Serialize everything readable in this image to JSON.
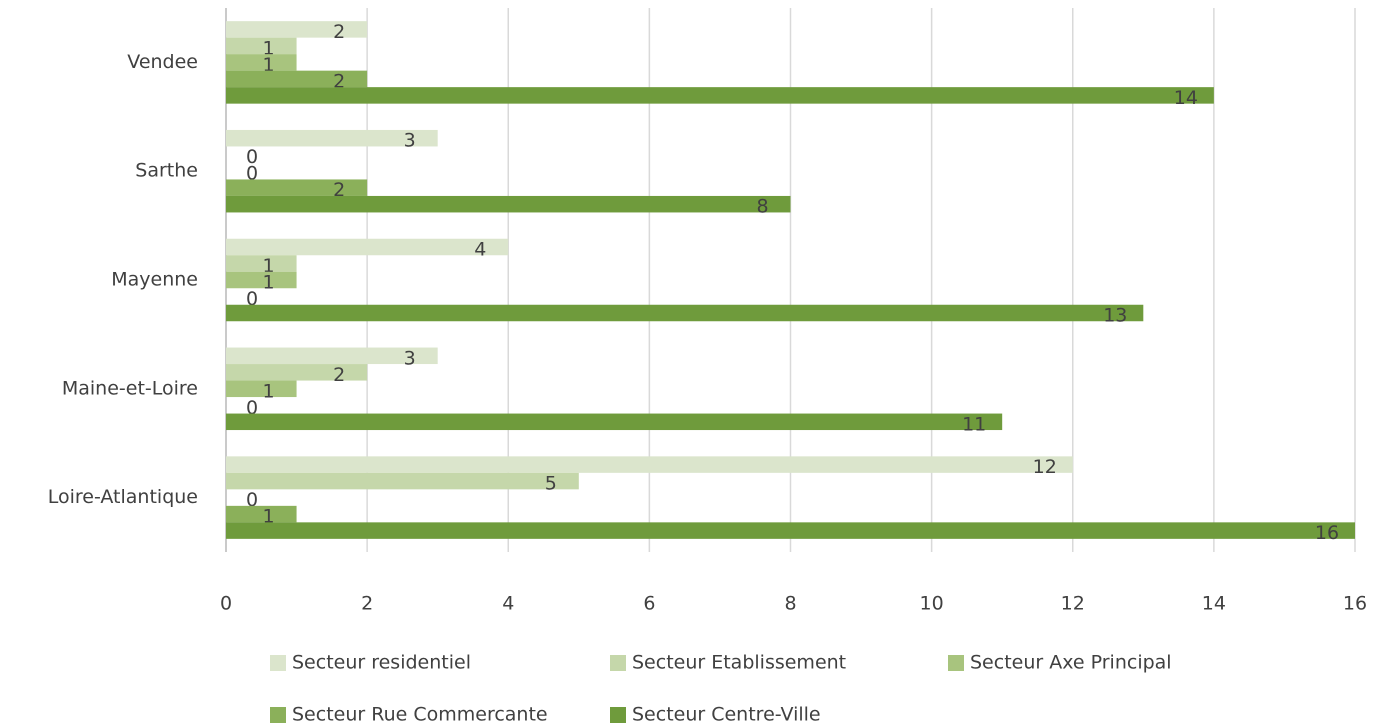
{
  "chart_data": {
    "type": "bar",
    "orientation": "horizontal",
    "categories": [
      "Loire-Atlantique",
      "Maine-et-Loire",
      "Mayenne",
      "Sarthe",
      "Vendee"
    ],
    "series": [
      {
        "name": "Secteur residentiel",
        "color": "#dbe5cc",
        "values": [
          12,
          3,
          4,
          3,
          2
        ]
      },
      {
        "name": "Secteur Etablissement",
        "color": "#c5d7aa",
        "values": [
          5,
          2,
          1,
          0,
          1
        ]
      },
      {
        "name": "Secteur Axe Principal",
        "color": "#a8c47e",
        "values": [
          0,
          1,
          1,
          0,
          1
        ]
      },
      {
        "name": "Secteur Rue Commercante",
        "color": "#8bb05a",
        "values": [
          1,
          0,
          0,
          2,
          2
        ]
      },
      {
        "name": "Secteur Centre-Ville",
        "color": "#6f9b3c",
        "values": [
          16,
          11,
          13,
          8,
          14
        ]
      }
    ],
    "xlim": [
      0,
      16
    ],
    "xticks": [
      0,
      2,
      4,
      6,
      8,
      10,
      12,
      14,
      16
    ],
    "grid": true,
    "legend": "bottom"
  }
}
